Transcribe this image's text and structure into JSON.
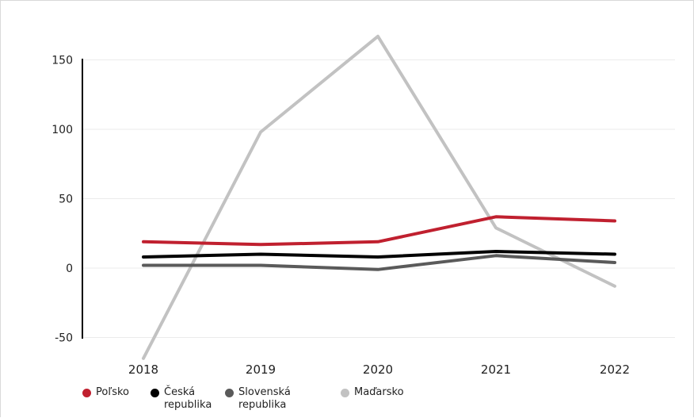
{
  "chart_data": {
    "type": "line",
    "categories": [
      "2018",
      "2019",
      "2020",
      "2021",
      "2022"
    ],
    "series": [
      {
        "name": "Poľsko",
        "color": "#c0202f",
        "values": [
          19,
          17,
          19,
          37,
          34
        ]
      },
      {
        "name": "Česká republika",
        "color": "#000000",
        "values": [
          8,
          10,
          8,
          12,
          10
        ]
      },
      {
        "name": "Slovenská republika",
        "color": "#5a5a5a",
        "values": [
          2,
          2,
          -1,
          9,
          4
        ]
      },
      {
        "name": "Maďarsko",
        "color": "#c2c2c2",
        "values": [
          -65,
          98,
          167,
          29,
          -13
        ]
      }
    ],
    "yticks": [
      "150",
      "100",
      "50",
      "0",
      "-50"
    ],
    "ylim": [
      -50,
      150
    ],
    "grid": true,
    "legend_position": "bottom-left"
  },
  "legend": [
    {
      "label": "Poľsko",
      "color": "#c0202f"
    },
    {
      "label": "Česká\nrepublika",
      "color": "#000000"
    },
    {
      "label": "Slovenská\nrepublika",
      "color": "#5a5a5a"
    },
    {
      "label": "Maďarsko",
      "color": "#c2c2c2"
    }
  ]
}
